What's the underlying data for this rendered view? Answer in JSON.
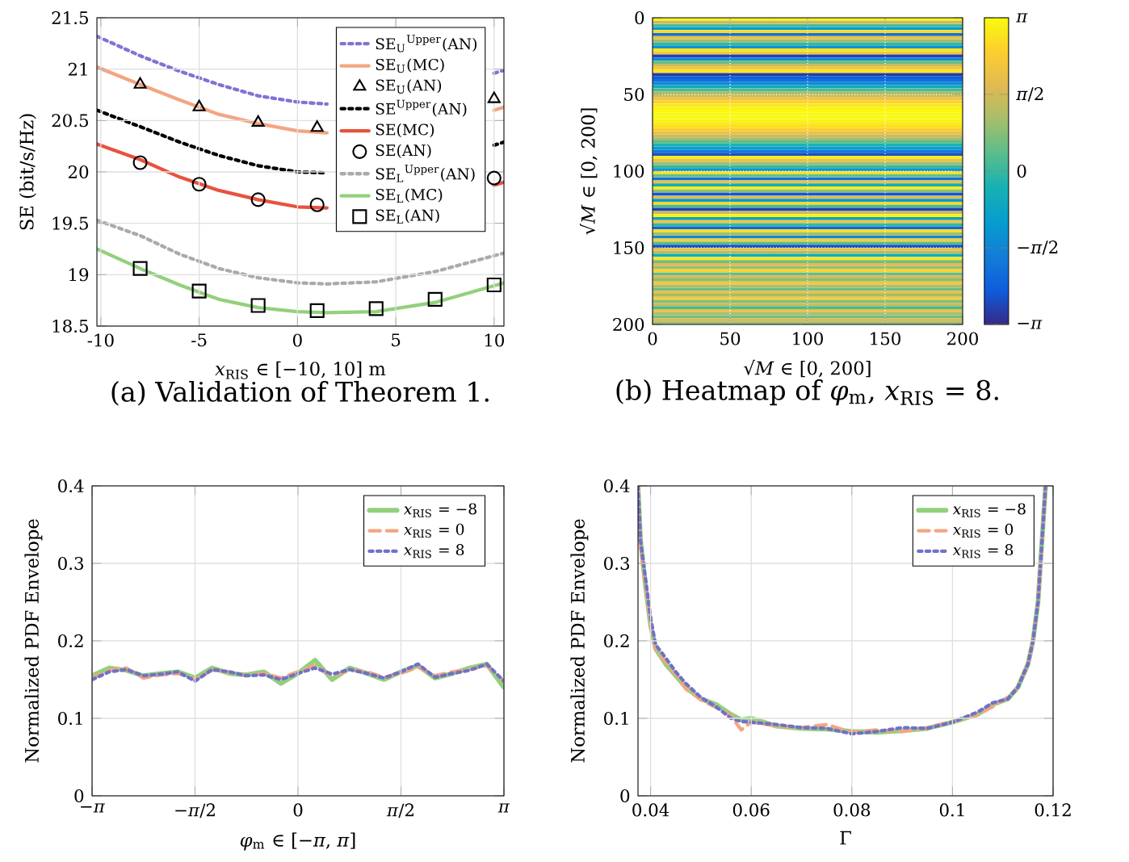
{
  "chart_data": [
    {
      "type": "line",
      "title": "(a) Validation of Theorem 1.",
      "xlabel": "*x*$_{RIS}$ ∈ [−10, 10] m",
      "ylabel": "SE (bit/s/Hz)",
      "xlim": [
        -10.2,
        10.5
      ],
      "ylim": [
        18.5,
        21.5
      ],
      "xticks": [
        -10,
        -5,
        0,
        5,
        10
      ],
      "yticks": [
        18.5,
        19,
        19.5,
        20,
        20.5,
        21,
        21.5
      ],
      "grid": true,
      "legend": "top right",
      "series": [
        {
          "name": "SE$_{U}$$^{Upper}$(AN)",
          "color": "#7f73d4",
          "line_style": "dotted",
          "x": [
            -10.2,
            -8,
            -6,
            -4,
            -2,
            0,
            1.5,
            4,
            7,
            10,
            10.5
          ],
          "values": [
            21.32,
            21.13,
            20.98,
            20.85,
            20.74,
            20.68,
            20.66,
            null,
            null,
            20.96,
            20.99
          ]
        },
        {
          "name": "SE$_{U}$(MC)",
          "color": "#f4a582",
          "line_style": "solid",
          "x": [
            -10.2,
            -8,
            -6,
            -4,
            -2,
            0,
            1.5,
            4,
            7,
            10,
            10.5
          ],
          "values": [
            21.02,
            20.85,
            20.7,
            20.56,
            20.47,
            20.4,
            20.38,
            null,
            null,
            20.6,
            20.63
          ]
        },
        {
          "name": "SE$_{U}$(AN)",
          "type": "scatter",
          "marker": "triangle",
          "color": "#000000",
          "x": [
            -8,
            -5,
            -2,
            1,
            4,
            7,
            10
          ],
          "values": [
            20.85,
            20.63,
            20.48,
            20.43,
            null,
            null,
            20.71
          ]
        },
        {
          "name": "SE$^{Upper}$(AN)",
          "color": "#000000",
          "line_style": "dotted",
          "x": [
            -10.2,
            -8,
            -6,
            -4,
            -2,
            0,
            1.5,
            4,
            7,
            10,
            10.5
          ],
          "values": [
            20.6,
            20.44,
            20.29,
            20.16,
            20.06,
            20.0,
            19.99,
            null,
            null,
            20.26,
            20.29
          ]
        },
        {
          "name": "SE(MC)",
          "color": "#e8523e",
          "line_style": "solid",
          "x": [
            -10.2,
            -8,
            -6,
            -4,
            -2,
            0,
            1.5,
            4,
            7,
            10,
            10.5
          ],
          "values": [
            20.27,
            20.12,
            19.95,
            19.82,
            19.73,
            19.66,
            19.65,
            null,
            null,
            19.87,
            19.9
          ]
        },
        {
          "name": "SE(AN)",
          "type": "scatter",
          "marker": "circle",
          "color": "#000000",
          "x": [
            -8,
            -5,
            -2,
            1,
            4,
            7,
            10
          ],
          "values": [
            20.09,
            19.88,
            19.73,
            19.68,
            null,
            null,
            19.94
          ]
        },
        {
          "name": "SE$_{L}$$^{Upper}$(AN)",
          "color": "#aaaaaa",
          "line_style": "dotted",
          "x": [
            -10.2,
            -8,
            -6,
            -4,
            -2,
            0,
            1.5,
            4,
            7,
            10.5
          ],
          "values": [
            19.53,
            19.38,
            19.2,
            19.06,
            18.97,
            18.92,
            18.91,
            18.93,
            19.03,
            19.21
          ]
        },
        {
          "name": "SE$_{L}$(MC)",
          "color": "#93d07c",
          "line_style": "solid",
          "x": [
            -10.2,
            -8,
            -6,
            -4,
            -2,
            0,
            1.5,
            4,
            7,
            10.5
          ],
          "values": [
            19.25,
            19.06,
            18.9,
            18.76,
            18.68,
            18.64,
            18.63,
            18.64,
            18.73,
            18.92
          ]
        },
        {
          "name": "SE$_{L}$(AN)",
          "type": "scatter",
          "marker": "square",
          "color": "#000000",
          "x": [
            -8,
            -5,
            -2,
            1,
            4,
            7,
            10
          ],
          "values": [
            19.06,
            18.84,
            18.7,
            18.65,
            18.67,
            18.76,
            18.9
          ]
        }
      ]
    },
    {
      "type": "heatmap",
      "title": "(b) Heatmap of *φ*$_{m}$, *x*$_{RIS}$ = 8.",
      "xlabel": "√*M* ∈ [0, 200]",
      "ylabel": "√*M* ∈ [0, 200]",
      "xlim": [
        0,
        200
      ],
      "ylim": [
        200,
        0
      ],
      "xticks": [
        0,
        50,
        100,
        150,
        200
      ],
      "yticks": [
        0,
        50,
        100,
        150,
        200
      ],
      "grid": true,
      "clim": [
        -3.1416,
        3.1416
      ],
      "cticks": [
        {
          "value": -3.1416,
          "label": "−*π*"
        },
        {
          "value": -1.5708,
          "label": "−*π*/2"
        },
        {
          "value": 0,
          "label": "0"
        },
        {
          "value": 1.5708,
          "label": "*π*/2"
        },
        {
          "value": 3.1416,
          "label": "*π*"
        }
      ],
      "cells": [
        [
          3.0
        ],
        [
          1.5
        ],
        [
          0.2
        ],
        [
          -1.0
        ],
        [
          2.6
        ],
        [
          -2.0
        ],
        [
          2.0
        ],
        [
          1.0
        ],
        [
          0.0
        ],
        [
          -1.2
        ],
        [
          2.8
        ],
        [
          2.2
        ],
        [
          -2.8
        ],
        [
          -1.5
        ],
        [
          0.5
        ],
        [
          1.5
        ],
        [
          2.3
        ],
        [
          2.8
        ],
        [
          -2.9
        ],
        [
          -2.4
        ],
        [
          -2.0
        ],
        [
          -1.4
        ],
        [
          -0.6
        ],
        [
          0.2
        ],
        [
          1.0
        ],
        [
          1.6
        ],
        [
          2.1
        ],
        [
          2.5
        ],
        [
          2.8
        ],
        [
          3.0
        ],
        [
          3.1
        ],
        [
          3.1
        ],
        [
          3.1
        ],
        [
          3.0
        ],
        [
          2.9
        ],
        [
          2.7
        ],
        [
          2.4
        ],
        [
          2.0
        ],
        [
          1.5
        ],
        [
          1.0
        ],
        [
          0.4
        ],
        [
          -0.3
        ],
        [
          -1.0
        ],
        [
          -1.8
        ],
        [
          -2.6
        ],
        [
          2.9
        ],
        [
          2.0
        ],
        [
          1.0
        ],
        [
          0.0
        ],
        [
          -1.2
        ],
        [
          2.8
        ],
        [
          0.5
        ],
        [
          -2.0
        ],
        [
          2.0
        ],
        [
          -0.5
        ],
        [
          2.9
        ],
        [
          0.8
        ],
        [
          -2.5
        ],
        [
          1.8
        ],
        [
          -1.0
        ],
        [
          2.6
        ],
        [
          0.2
        ],
        [
          -2.8
        ],
        [
          1.5
        ],
        [
          3.0
        ],
        [
          -0.8
        ],
        [
          2.2
        ],
        [
          0.0
        ],
        [
          -2.2
        ],
        [
          2.7
        ],
        [
          1.0
        ],
        [
          -1.5
        ],
        [
          2.4
        ],
        [
          0.3
        ],
        [
          -2.6
        ],
        [
          2.0
        ],
        [
          1.2
        ],
        [
          -0.5
        ],
        [
          2.8
        ],
        [
          0.6
        ],
        [
          1.8
        ],
        [
          0.9
        ],
        [
          2.5
        ],
        [
          0.4
        ],
        [
          1.6
        ],
        [
          0.8
        ],
        [
          2.2
        ],
        [
          1.2
        ],
        [
          0.5
        ],
        [
          1.9
        ],
        [
          1.0
        ],
        [
          2.4
        ],
        [
          0.7
        ],
        [
          1.5
        ],
        [
          0.2
        ],
        [
          2.0
        ],
        [
          1.1
        ],
        [
          0.6
        ],
        [
          1.7
        ],
        [
          0.9
        ]
      ]
    },
    {
      "type": "line",
      "xlabel": "*φ*$_{m}$ ∈ [−*π*, *π*]",
      "ylabel": "Normalized PDF Envelope",
      "xlim": [
        -3.1416,
        3.1416
      ],
      "ylim": [
        0,
        0.4
      ],
      "xticks": [
        {
          "value": -3.1416,
          "label": "−*π*"
        },
        {
          "value": -1.5708,
          "label": "−*π*/2"
        },
        {
          "value": 0,
          "label": "0"
        },
        {
          "value": 1.5708,
          "label": "*π*/2"
        },
        {
          "value": 3.1416,
          "label": "*π*"
        }
      ],
      "yticks": [
        0,
        0.1,
        0.2,
        0.3,
        0.4
      ],
      "grid": true,
      "legend": "top right",
      "series": [
        {
          "name": "*x*$_{RIS}$ = −8",
          "color": "#93d07c",
          "line_style": "solid",
          "x": [
            -3.14,
            -2.88,
            -2.62,
            -2.36,
            -2.09,
            -1.83,
            -1.57,
            -1.31,
            -1.05,
            -0.79,
            -0.52,
            -0.26,
            0,
            0.26,
            0.52,
            0.79,
            1.05,
            1.31,
            1.57,
            1.83,
            2.09,
            2.36,
            2.62,
            2.88,
            3.14
          ],
          "values": [
            0.155,
            0.165,
            0.162,
            0.155,
            0.158,
            0.16,
            0.152,
            0.165,
            0.158,
            0.156,
            0.16,
            0.145,
            0.158,
            0.175,
            0.15,
            0.165,
            0.158,
            0.15,
            0.16,
            0.168,
            0.152,
            0.158,
            0.165,
            0.17,
            0.14
          ]
        },
        {
          "name": "*x*$_{RIS}$ = 0",
          "color": "#f4a582",
          "line_style": "dashed",
          "x": [
            -3.14,
            -2.88,
            -2.62,
            -2.36,
            -2.09,
            -1.83,
            -1.57,
            -1.31,
            -1.05,
            -0.79,
            -0.52,
            -0.26,
            0,
            0.26,
            0.52,
            0.79,
            1.05,
            1.31,
            1.57,
            1.83,
            2.09,
            2.36,
            2.62,
            2.88,
            3.14
          ],
          "values": [
            0.152,
            0.162,
            0.165,
            0.152,
            0.156,
            0.158,
            0.15,
            0.162,
            0.16,
            0.155,
            0.158,
            0.152,
            0.16,
            0.168,
            0.155,
            0.162,
            0.16,
            0.153,
            0.158,
            0.166,
            0.155,
            0.16,
            0.163,
            0.168,
            0.148
          ]
        },
        {
          "name": "*x*$_{RIS}$ = 8",
          "color": "#6f72c9",
          "line_style": "dotted",
          "x": [
            -3.14,
            -2.88,
            -2.62,
            -2.36,
            -2.09,
            -1.83,
            -1.57,
            -1.31,
            -1.05,
            -0.79,
            -0.52,
            -0.26,
            0,
            0.26,
            0.52,
            0.79,
            1.05,
            1.31,
            1.57,
            1.83,
            2.09,
            2.36,
            2.62,
            2.88,
            3.14
          ],
          "values": [
            0.15,
            0.16,
            0.163,
            0.155,
            0.157,
            0.16,
            0.148,
            0.163,
            0.16,
            0.155,
            0.156,
            0.15,
            0.158,
            0.165,
            0.157,
            0.163,
            0.158,
            0.152,
            0.16,
            0.17,
            0.153,
            0.158,
            0.162,
            0.17,
            0.148
          ]
        }
      ]
    },
    {
      "type": "line",
      "xlabel": "Γ",
      "ylabel": "Normalized PDF Envelope",
      "xlim": [
        0.0375,
        0.12
      ],
      "ylim": [
        0,
        0.4
      ],
      "xticks": [
        0.04,
        0.06,
        0.08,
        0.1,
        0.12
      ],
      "yticks": [
        0,
        0.1,
        0.2,
        0.3,
        0.4
      ],
      "grid": true,
      "legend": "top right",
      "series": [
        {
          "name": "*x*$_{RIS}$ = −8",
          "color": "#93d07c",
          "line_style": "solid",
          "x": [
            0.0375,
            0.038,
            0.039,
            0.04,
            0.041,
            0.043,
            0.045,
            0.047,
            0.05,
            0.053,
            0.056,
            0.058,
            0.06,
            0.065,
            0.07,
            0.075,
            0.08,
            0.085,
            0.09,
            0.095,
            0.1,
            0.105,
            0.108,
            0.111,
            0.113,
            0.115,
            0.116,
            0.117,
            0.1175,
            0.118,
            0.1185
          ],
          "values": [
            0.4,
            0.33,
            0.27,
            0.22,
            0.19,
            0.17,
            0.155,
            0.14,
            0.125,
            0.118,
            0.105,
            0.098,
            0.1,
            0.09,
            0.087,
            0.086,
            0.083,
            0.082,
            0.084,
            0.087,
            0.095,
            0.105,
            0.118,
            0.125,
            0.14,
            0.17,
            0.2,
            0.25,
            0.3,
            0.35,
            0.4
          ]
        },
        {
          "name": "*x*$_{RIS}$ = 0",
          "color": "#f4a582",
          "line_style": "dashed",
          "x": [
            0.0375,
            0.038,
            0.039,
            0.04,
            0.041,
            0.043,
            0.045,
            0.047,
            0.05,
            0.053,
            0.056,
            0.058,
            0.06,
            0.065,
            0.07,
            0.075,
            0.08,
            0.085,
            0.09,
            0.095,
            0.1,
            0.105,
            0.108,
            0.111,
            0.113,
            0.115,
            0.116,
            0.117,
            0.1175,
            0.118,
            0.1185
          ],
          "values": [
            0.4,
            0.32,
            0.27,
            0.22,
            0.19,
            0.172,
            0.157,
            0.138,
            0.124,
            0.114,
            0.103,
            0.085,
            0.095,
            0.09,
            0.088,
            0.092,
            0.082,
            0.085,
            0.083,
            0.088,
            0.096,
            0.105,
            0.115,
            0.127,
            0.14,
            0.168,
            0.2,
            0.25,
            0.3,
            0.35,
            0.4
          ]
        },
        {
          "name": "*x*$_{RIS}$ = 8",
          "color": "#6f72c9",
          "line_style": "dotted",
          "x": [
            0.0375,
            0.038,
            0.039,
            0.04,
            0.041,
            0.043,
            0.045,
            0.047,
            0.05,
            0.053,
            0.056,
            0.058,
            0.06,
            0.065,
            0.07,
            0.075,
            0.08,
            0.085,
            0.09,
            0.095,
            0.1,
            0.105,
            0.108,
            0.111,
            0.113,
            0.115,
            0.116,
            0.117,
            0.1175,
            0.118,
            0.1185
          ],
          "values": [
            0.4,
            0.33,
            0.28,
            0.23,
            0.195,
            0.178,
            0.16,
            0.145,
            0.127,
            0.115,
            0.1,
            0.096,
            0.095,
            0.092,
            0.088,
            0.087,
            0.08,
            0.083,
            0.088,
            0.087,
            0.095,
            0.108,
            0.12,
            0.125,
            0.14,
            0.17,
            0.2,
            0.25,
            0.3,
            0.35,
            0.4
          ]
        }
      ]
    }
  ]
}
